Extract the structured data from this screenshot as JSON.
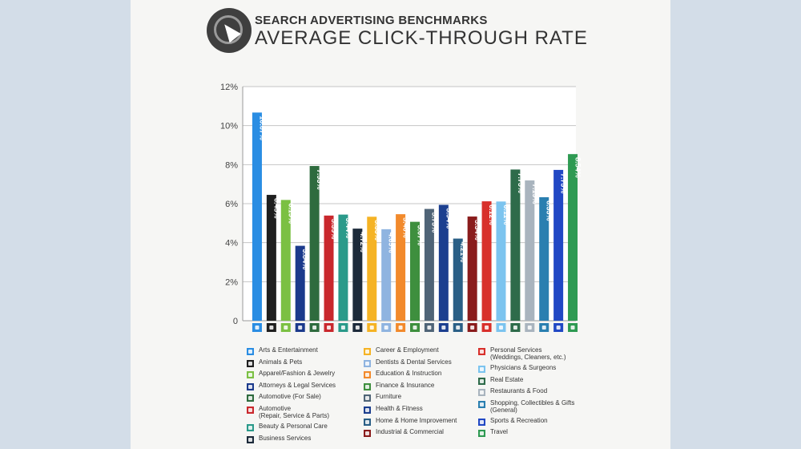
{
  "header": {
    "subtitle": "SEARCH ADVERTISING BENCHMARKS",
    "title": "AVERAGE CLICK-THROUGH RATE",
    "logo_icon": "cursor-circle-icon"
  },
  "chart_data": {
    "type": "bar",
    "title": "AVERAGE CLICK-THROUGH RATE",
    "subtitle": "SEARCH ADVERTISING BENCHMARKS",
    "xlabel": "",
    "ylabel": "",
    "ylim": [
      0,
      12
    ],
    "y_ticks": [
      "0",
      "2%",
      "4%",
      "6%",
      "8%",
      "10%",
      "12%"
    ],
    "grid": true,
    "legend_position": "bottom",
    "categories": [
      "Arts & Entertainment",
      "Animals & Pets",
      "Apparel/Fashion & Jewelry",
      "Attorneys & Legal Services",
      "Automotive (For Sale)",
      "Automotive\n(Repair, Service & Parts)",
      "Beauty & Personal Care",
      "Business Services",
      "Career & Employment",
      "Dentists & Dental Services",
      "Education & Instruction",
      "Finance & Insurance",
      "Furniture",
      "Health & Fitness",
      "Home & Home Improvement",
      "Industrial & Commercial",
      "Personal Services\n(Weddings, Cleaners, etc.)",
      "Physicians & Surgeons",
      "Real Estate",
      "Restaurants & Food",
      "Shopping, Collectibles & Gifts\n(General)",
      "Sports & Recreation",
      "Travel"
    ],
    "values": [
      10.67,
      6.45,
      6.19,
      3.84,
      7.93,
      5.39,
      5.44,
      4.72,
      5.33,
      4.69,
      5.46,
      5.07,
      5.73,
      5.94,
      4.21,
      5.34,
      6.12,
      6.11,
      7.75,
      7.19,
      6.33,
      7.73,
      8.54
    ],
    "labels": [
      "10.67%",
      "6.45%",
      "6.19%",
      "3.84%",
      "7.93%",
      "5.39%",
      "5.44%",
      "4.72%",
      "5.33%",
      "4.69%",
      "5.46%",
      "5.07%",
      "5.73%",
      "5.94%",
      "4.21%",
      "5.34%",
      "6.12%",
      "6.11%",
      "7.75%",
      "7.19%",
      "6.33%",
      "7.73%",
      "8.54%"
    ],
    "colors": [
      "#2a8de3",
      "#1f1f1f",
      "#7bc043",
      "#1b3a8c",
      "#2e6b3e",
      "#c9282d",
      "#2a9a8a",
      "#1c2a3a",
      "#f5b324",
      "#8fb4e0",
      "#f28a2c",
      "#3e8f3e",
      "#4f6477",
      "#1c3f8f",
      "#2a5f86",
      "#8a1c1c",
      "#d8302b",
      "#7cc4ef",
      "#2e6b4a",
      "#a9b4be",
      "#2a7fb0",
      "#2148c4",
      "#2e9a52"
    ],
    "label_colors": [
      "#ffffff",
      "#ffffff",
      "#ffffff",
      "#ffffff",
      "#ffffff",
      "#ffffff",
      "#ffffff",
      "#ffffff",
      "#ffffff",
      "#ffffff",
      "#ffffff",
      "#ffffff",
      "#ffffff",
      "#ffffff",
      "#ffffff",
      "#ffffff",
      "#ffffff",
      "#ffffff",
      "#ffffff",
      "#ffffff",
      "#ffffff",
      "#ffffff",
      "#ffffff"
    ],
    "icons": [
      "ticket-icon",
      "paw-icon",
      "shirt-icon",
      "gavel-icon",
      "car-key-icon",
      "car-icon",
      "brush-icon",
      "briefcase-icon",
      "clipboard-icon",
      "tooth-icon",
      "graduation-cap-icon",
      "piggy-bank-icon",
      "sofa-icon",
      "treadmill-icon",
      "house-icon",
      "factory-icon",
      "hanger-icon",
      "medical-cross-icon",
      "building-icon",
      "cutlery-icon",
      "gift-icon",
      "ball-icon",
      "plane-icon"
    ]
  }
}
